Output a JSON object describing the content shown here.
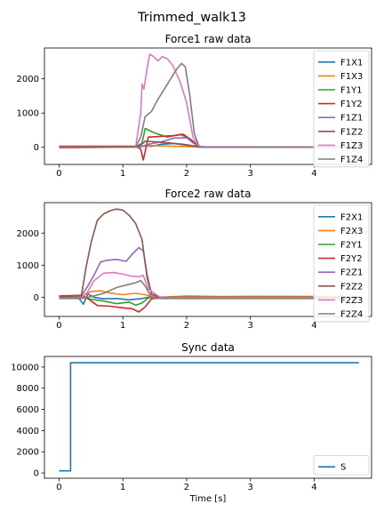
{
  "figure_title": "Trimmed_walk13",
  "colors": {
    "c0": "#1f77b4",
    "c1": "#ff7f0e",
    "c2": "#2ca02c",
    "c3": "#d62728",
    "c4": "#9467bd",
    "c5": "#8c564b",
    "c6": "#e377c2",
    "c7": "#7f7f7f"
  },
  "chart_data": [
    {
      "type": "line",
      "title": "Force1 raw data",
      "xlabel": "",
      "ylabel": "",
      "xlim": [
        -0.23,
        4.9
      ],
      "ylim": [
        -500,
        2900
      ],
      "xticks": [
        0,
        1,
        2,
        3,
        4
      ],
      "yticks": [
        0,
        1000,
        2000
      ],
      "legend_position": "top-right",
      "series": [
        {
          "name": "F1X1",
          "color": "#1f77b4",
          "x": [
            0,
            1.2,
            1.3,
            1.35,
            1.45,
            1.6,
            1.8,
            2.0,
            2.1,
            2.3,
            3.0,
            4.0,
            4.7
          ],
          "y": [
            10,
            15,
            25,
            40,
            30,
            90,
            110,
            60,
            30,
            10,
            15,
            10,
            15
          ]
        },
        {
          "name": "F1X3",
          "color": "#ff7f0e",
          "x": [
            0,
            1.2,
            1.3,
            1.4,
            1.6,
            1.8,
            2.0,
            2.15,
            2.3,
            3.0,
            4.7
          ],
          "y": [
            -20,
            10,
            30,
            50,
            40,
            30,
            20,
            10,
            0,
            10,
            5
          ]
        },
        {
          "name": "F1Y1",
          "color": "#2ca02c",
          "x": [
            0,
            1.2,
            1.3,
            1.35,
            1.5,
            1.7,
            1.9,
            2.05,
            2.15,
            2.3,
            4.7
          ],
          "y": [
            0,
            5,
            120,
            550,
            420,
            300,
            380,
            250,
            50,
            0,
            5
          ]
        },
        {
          "name": "F1Y2",
          "color": "#d62728",
          "x": [
            0,
            1.2,
            1.28,
            1.32,
            1.4,
            1.6,
            1.8,
            1.95,
            2.1,
            2.2,
            4.7
          ],
          "y": [
            30,
            30,
            -50,
            -370,
            300,
            320,
            340,
            380,
            180,
            0,
            5
          ]
        },
        {
          "name": "F1Z1",
          "color": "#9467bd",
          "x": [
            0,
            1.2,
            1.3,
            1.4,
            1.6,
            1.8,
            2.0,
            2.1,
            2.2,
            4.7
          ],
          "y": [
            -5,
            0,
            30,
            90,
            160,
            270,
            280,
            130,
            20,
            0
          ]
        },
        {
          "name": "F1Z2",
          "color": "#8c564b",
          "x": [
            0,
            1.2,
            1.28,
            1.35,
            1.5,
            1.7,
            1.9,
            2.05,
            2.2,
            4.7
          ],
          "y": [
            10,
            10,
            60,
            180,
            160,
            130,
            100,
            60,
            10,
            10
          ]
        },
        {
          "name": "F1Z3",
          "color": "#e377c2",
          "x": [
            0,
            1.2,
            1.28,
            1.3,
            1.33,
            1.38,
            1.42,
            1.48,
            1.55,
            1.62,
            1.7,
            1.78,
            1.9,
            2.0,
            2.1,
            2.2,
            4.7
          ],
          "y": [
            0,
            0,
            1000,
            1850,
            1700,
            2300,
            2720,
            2650,
            2520,
            2650,
            2580,
            2400,
            1900,
            1300,
            300,
            20,
            0
          ]
        },
        {
          "name": "F1Z4",
          "color": "#7f7f7f",
          "x": [
            0,
            1.2,
            1.28,
            1.35,
            1.45,
            1.55,
            1.65,
            1.75,
            1.85,
            1.92,
            1.98,
            2.05,
            2.12,
            2.2,
            4.7
          ],
          "y": [
            0,
            0,
            300,
            900,
            1050,
            1400,
            1700,
            2000,
            2300,
            2450,
            2350,
            1500,
            400,
            0,
            0
          ]
        }
      ]
    },
    {
      "type": "line",
      "title": "Force2 raw data",
      "xlabel": "",
      "ylabel": "",
      "xlim": [
        -0.23,
        4.9
      ],
      "ylim": [
        -600,
        2950
      ],
      "xticks": [
        0,
        1,
        2,
        3,
        4
      ],
      "yticks": [
        0,
        1000,
        2000
      ],
      "legend_position": "top-right",
      "series": [
        {
          "name": "F2X1",
          "color": "#1f77b4",
          "x": [
            0,
            0.3,
            0.38,
            0.45,
            0.55,
            0.7,
            0.9,
            1.1,
            1.3,
            1.4,
            1.6,
            4.7
          ],
          "y": [
            -10,
            -10,
            -220,
            100,
            0,
            -50,
            -40,
            -80,
            -40,
            0,
            -10,
            -15
          ]
        },
        {
          "name": "F2X3",
          "color": "#ff7f0e",
          "x": [
            0,
            0.35,
            0.5,
            0.65,
            0.8,
            1.0,
            1.2,
            1.35,
            1.45,
            1.6,
            2.0,
            2.5,
            3.0,
            4.7
          ],
          "y": [
            0,
            10,
            180,
            200,
            130,
            80,
            120,
            80,
            20,
            0,
            40,
            20,
            30,
            20
          ]
        },
        {
          "name": "F2Y1",
          "color": "#2ca02c",
          "x": [
            0,
            0.35,
            0.5,
            0.7,
            0.9,
            1.1,
            1.2,
            1.3,
            1.4,
            1.6,
            4.7
          ],
          "y": [
            -10,
            0,
            -60,
            -120,
            -200,
            -150,
            -250,
            -180,
            -20,
            0,
            0
          ]
        },
        {
          "name": "F2Y2",
          "color": "#d62728",
          "x": [
            0,
            0.35,
            0.45,
            0.6,
            0.8,
            1.0,
            1.15,
            1.25,
            1.35,
            1.45,
            1.6,
            4.7
          ],
          "y": [
            40,
            60,
            -40,
            -260,
            -280,
            -330,
            -360,
            -460,
            -300,
            -50,
            -20,
            -20
          ]
        },
        {
          "name": "F2Z1",
          "color": "#9467bd",
          "x": [
            0,
            0.35,
            0.45,
            0.55,
            0.65,
            0.75,
            0.9,
            1.05,
            1.15,
            1.25,
            1.32,
            1.38,
            1.45,
            1.6,
            4.7
          ],
          "y": [
            0,
            50,
            350,
            700,
            1100,
            1150,
            1180,
            1120,
            1350,
            1550,
            1450,
            700,
            100,
            0,
            0
          ]
        },
        {
          "name": "F2Z2",
          "color": "#8c564b",
          "x": [
            0,
            0.35,
            0.42,
            0.5,
            0.6,
            0.7,
            0.8,
            0.9,
            1.0,
            1.1,
            1.2,
            1.3,
            1.38,
            1.45,
            1.6,
            4.7
          ],
          "y": [
            0,
            60,
            900,
            1700,
            2400,
            2600,
            2700,
            2750,
            2720,
            2550,
            2300,
            1800,
            600,
            80,
            0,
            0
          ]
        },
        {
          "name": "F2Z3",
          "color": "#e377c2",
          "x": [
            0,
            0.35,
            0.45,
            0.55,
            0.7,
            0.85,
            1.0,
            1.15,
            1.25,
            1.32,
            1.4,
            1.6,
            4.7
          ],
          "y": [
            -30,
            -20,
            180,
            520,
            750,
            770,
            720,
            650,
            640,
            680,
            250,
            -20,
            -20
          ]
        },
        {
          "name": "F2Z4",
          "color": "#7f7f7f",
          "x": [
            0,
            0.35,
            0.5,
            0.7,
            0.9,
            1.05,
            1.2,
            1.28,
            1.35,
            1.45,
            1.6,
            4.7
          ],
          "y": [
            -40,
            -40,
            20,
            120,
            300,
            380,
            450,
            520,
            350,
            -20,
            -40,
            -40
          ]
        }
      ]
    },
    {
      "type": "line",
      "title": "Sync data",
      "xlabel": "Time [s]",
      "ylabel": "",
      "xlim": [
        -0.23,
        4.9
      ],
      "ylim": [
        -500,
        11000
      ],
      "xticks": [
        0,
        1,
        2,
        3,
        4
      ],
      "yticks": [
        0,
        2000,
        4000,
        6000,
        8000,
        10000
      ],
      "legend_position": "bottom-right",
      "series": [
        {
          "name": "S",
          "color": "#1f77b4",
          "x": [
            0,
            0.18,
            0.18,
            4.7
          ],
          "y": [
            200,
            200,
            10400,
            10400
          ]
        }
      ]
    }
  ]
}
